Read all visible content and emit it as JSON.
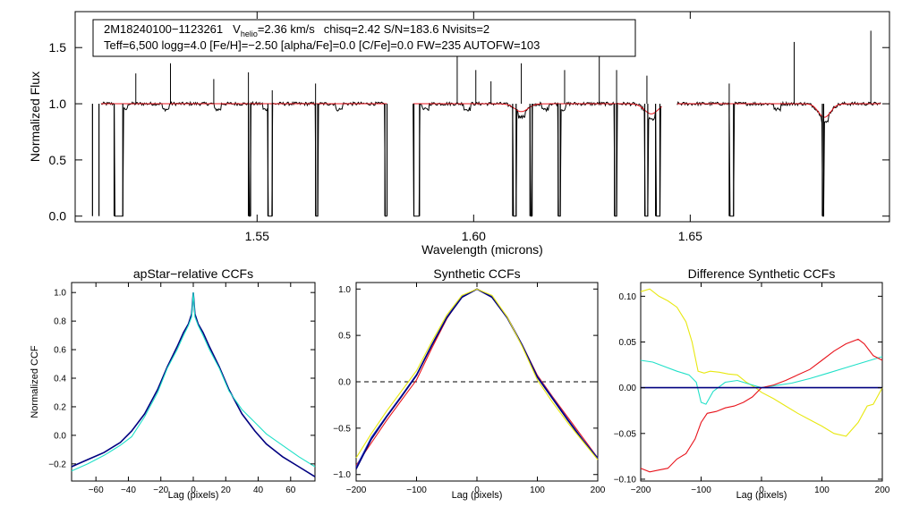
{
  "colors": {
    "observed": "#000000",
    "model": "#e8141c",
    "navy": "#000080",
    "cyan": "#20e0c8",
    "yellow": "#e8e810",
    "red": "#e8141c",
    "blue": "#2040d0",
    "zero_line": "#000000"
  },
  "chart_data": [
    {
      "type": "line",
      "id": "spectrum",
      "title": "",
      "info_line1": {
        "star": "2M18240100−1123261",
        "v_prefix": "V",
        "v_sub": "helio",
        "v_value": "=2.36 km/s",
        "rest": "chisq=2.42  S/N=183.6  Nvisits=2"
      },
      "info_line2": "Teff=6,500 logg=4.0 [Fe/H]=−2.50 [alpha/Fe]=0.0 [C/Fe]=0.0 FW=235 AUTOFW=103",
      "xlabel": "Wavelength (microns)",
      "ylabel": "Normalized Flux",
      "xlim": [
        1.508,
        1.696
      ],
      "ylim": [
        -0.05,
        1.82
      ],
      "xticks": [
        1.55,
        1.6,
        1.65
      ],
      "xtick_labels": [
        "1.55",
        "1.60",
        "1.65"
      ],
      "yticks": [
        0.0,
        0.5,
        1.0,
        1.5
      ],
      "ytick_labels": [
        "0.0",
        "0.5",
        "1.0",
        "1.5"
      ],
      "chips": [
        [
          1.514,
          1.58
        ],
        [
          1.586,
          1.6435
        ],
        [
          1.647,
          1.694
        ]
      ],
      "absorption_lines": [
        1.5192,
        1.5288,
        1.5408,
        1.552,
        1.5688,
        1.5888,
        1.5985,
        1.611,
        1.6165,
        1.6205,
        1.641,
        1.67,
        1.681
      ],
      "broad_features": [
        {
          "center": 1.611,
          "depth": 0.07,
          "width": 0.0022
        },
        {
          "center": 1.641,
          "depth": 0.09,
          "width": 0.0022
        },
        {
          "center": 1.681,
          "depth": 0.12,
          "width": 0.002
        }
      ],
      "emission_spikes": [
        [
          1.522,
          1.27
        ],
        [
          1.53,
          1.36
        ],
        [
          1.54,
          1.22
        ],
        [
          1.548,
          1.28
        ],
        [
          1.5535,
          1.12
        ],
        [
          1.5635,
          1.18
        ],
        [
          1.5962,
          1.45
        ],
        [
          1.6005,
          1.3
        ],
        [
          1.604,
          1.2
        ],
        [
          1.611,
          1.36
        ],
        [
          1.621,
          1.3
        ],
        [
          1.629,
          1.58
        ],
        [
          1.633,
          1.3
        ],
        [
          1.64,
          1.25
        ],
        [
          1.659,
          1.18
        ],
        [
          1.674,
          1.55
        ],
        [
          1.6917,
          1.65
        ]
      ],
      "gaps": [
        [
          1.512,
          1.5135
        ],
        [
          1.517,
          1.519
        ],
        [
          1.548,
          1.5485
        ],
        [
          1.5525,
          1.5535
        ],
        [
          1.5635,
          1.564
        ],
        [
          1.5795,
          1.58
        ],
        [
          1.5862,
          1.5875
        ],
        [
          1.609,
          1.6098
        ],
        [
          1.613,
          1.6135
        ],
        [
          1.6195,
          1.62
        ],
        [
          1.6325,
          1.633
        ],
        [
          1.6395,
          1.6402
        ],
        [
          1.642,
          1.643
        ],
        [
          1.659,
          1.66
        ],
        [
          1.6805,
          1.6808
        ]
      ]
    },
    {
      "type": "line",
      "id": "apstar_ccf",
      "title": "apStar−relative CCFs",
      "xlabel": "Lag (pixels)",
      "ylabel": "Normalized CCF",
      "xlim": [
        -75,
        75
      ],
      "ylim": [
        -0.32,
        1.07
      ],
      "xticks": [
        -60,
        -40,
        -20,
        0,
        20,
        40,
        60
      ],
      "xtick_labels": [
        "−60",
        "−40",
        "−20",
        "0",
        "20",
        "40",
        "60"
      ],
      "yticks": [
        -0.2,
        0.0,
        0.2,
        0.4,
        0.6,
        0.8,
        1.0
      ],
      "ytick_labels": [
        "−0.2",
        "0.0",
        "0.2",
        "0.4",
        "0.6",
        "0.8",
        "1.0"
      ],
      "series": [
        {
          "name": "navy",
          "color": "navy",
          "x": [
            -75,
            -65,
            -55,
            -45,
            -38,
            -30,
            -22,
            -16,
            -10,
            -6,
            -3,
            -1,
            0,
            1,
            3,
            6,
            10,
            16,
            22,
            30,
            38,
            45,
            55,
            65,
            75
          ],
          "y": [
            -0.22,
            -0.17,
            -0.12,
            -0.05,
            0.03,
            0.15,
            0.32,
            0.48,
            0.62,
            0.72,
            0.78,
            0.85,
            1.0,
            0.85,
            0.78,
            0.72,
            0.62,
            0.48,
            0.32,
            0.15,
            0.03,
            -0.06,
            -0.15,
            -0.22,
            -0.29
          ]
        },
        {
          "name": "cyan",
          "color": "cyan",
          "x": [
            -75,
            -65,
            -55,
            -45,
            -38,
            -30,
            -22,
            -16,
            -10,
            -6,
            -3,
            -1,
            0,
            1,
            3,
            6,
            10,
            16,
            22,
            30,
            38,
            45,
            55,
            65,
            75
          ],
          "y": [
            -0.25,
            -0.2,
            -0.14,
            -0.07,
            -0.01,
            0.13,
            0.3,
            0.47,
            0.6,
            0.7,
            0.77,
            0.83,
            1.0,
            0.83,
            0.77,
            0.7,
            0.6,
            0.47,
            0.31,
            0.18,
            0.09,
            0.01,
            -0.07,
            -0.15,
            -0.22
          ]
        }
      ]
    },
    {
      "type": "line",
      "id": "synthetic_ccf",
      "title": "Synthetic CCFs",
      "xlabel": "Lag (pixels)",
      "ylabel": "",
      "xlim": [
        -200,
        200
      ],
      "ylim": [
        -1.07,
        1.07
      ],
      "xticks": [
        -200,
        -100,
        0,
        100,
        200
      ],
      "xtick_labels": [
        "−200",
        "−100",
        "0",
        "100",
        "200"
      ],
      "yticks": [
        -1.0,
        -0.5,
        0.0,
        0.5,
        1.0
      ],
      "ytick_labels": [
        "−1.0",
        "−0.5",
        "0.0",
        "0.5",
        "1.0"
      ],
      "zero_line": 0,
      "series": [
        {
          "name": "red",
          "color": "red",
          "x": [
            -200,
            -175,
            -150,
            -125,
            -100,
            -75,
            -50,
            -25,
            0,
            25,
            50,
            75,
            100,
            125,
            150,
            175,
            200
          ],
          "y": [
            -0.9,
            -0.66,
            -0.42,
            -0.2,
            0.02,
            0.36,
            0.68,
            0.92,
            1.0,
            0.92,
            0.7,
            0.4,
            0.07,
            -0.16,
            -0.38,
            -0.6,
            -0.82
          ]
        },
        {
          "name": "blue",
          "color": "blue",
          "x": [
            -200,
            -175,
            -150,
            -125,
            -100,
            -75,
            -50,
            -25,
            0,
            25,
            50,
            75,
            100,
            125,
            150,
            175,
            200
          ],
          "y": [
            -0.92,
            -0.6,
            -0.37,
            -0.15,
            0.08,
            0.4,
            0.7,
            0.92,
            1.0,
            0.92,
            0.7,
            0.4,
            0.06,
            -0.17,
            -0.4,
            -0.62,
            -0.82
          ]
        },
        {
          "name": "navy",
          "color": "navy",
          "x": [
            -200,
            -175,
            -150,
            -125,
            -100,
            -75,
            -50,
            -25,
            0,
            25,
            50,
            75,
            100,
            125,
            150,
            175,
            200
          ],
          "y": [
            -0.94,
            -0.62,
            -0.38,
            -0.16,
            0.07,
            0.39,
            0.69,
            0.91,
            1.0,
            0.91,
            0.69,
            0.39,
            0.05,
            -0.18,
            -0.41,
            -0.63,
            -0.83
          ]
        },
        {
          "name": "yellow",
          "color": "yellow",
          "x": [
            -200,
            -175,
            -150,
            -125,
            -100,
            -75,
            -50,
            -25,
            0,
            25,
            50,
            75,
            100,
            125,
            150,
            175,
            200
          ],
          "y": [
            -0.82,
            -0.56,
            -0.32,
            -0.1,
            0.12,
            0.43,
            0.72,
            0.93,
            1.0,
            0.93,
            0.7,
            0.38,
            0.02,
            -0.22,
            -0.44,
            -0.64,
            -0.84
          ]
        }
      ]
    },
    {
      "type": "line",
      "id": "diff_ccf",
      "title": "Difference Synthetic CCFs",
      "xlabel": "Lag (pixels)",
      "ylabel": "",
      "xlim": [
        -200,
        200
      ],
      "ylim": [
        -0.102,
        0.115
      ],
      "xticks": [
        -200,
        -100,
        0,
        100,
        200
      ],
      "xtick_labels": [
        "−200",
        "−100",
        "0",
        "100",
        "200"
      ],
      "yticks": [
        -0.1,
        -0.05,
        0.0,
        0.05,
        0.1
      ],
      "ytick_labels": [
        "−0.10",
        "−0.05",
        "0.00",
        "0.05",
        "0.10"
      ],
      "series": [
        {
          "name": "yellow",
          "color": "yellow",
          "x": [
            -200,
            -185,
            -170,
            -155,
            -140,
            -125,
            -115,
            -105,
            -95,
            -85,
            -70,
            -55,
            -40,
            -25,
            -10,
            0,
            20,
            40,
            60,
            80,
            100,
            120,
            140,
            160,
            175,
            185,
            200
          ],
          "y": [
            0.105,
            0.108,
            0.1,
            0.095,
            0.088,
            0.072,
            0.05,
            0.018,
            0.016,
            0.018,
            0.017,
            0.015,
            0.014,
            0.006,
            0.0,
            -0.005,
            -0.012,
            -0.02,
            -0.028,
            -0.035,
            -0.042,
            -0.05,
            -0.053,
            -0.038,
            -0.02,
            -0.018,
            0.0
          ]
        },
        {
          "name": "cyan",
          "color": "cyan",
          "x": [
            -200,
            -180,
            -160,
            -140,
            -120,
            -108,
            -100,
            -92,
            -80,
            -60,
            -40,
            -20,
            0,
            20,
            50,
            80,
            110,
            140,
            170,
            200
          ],
          "y": [
            0.03,
            0.028,
            0.023,
            0.018,
            0.014,
            0.006,
            -0.016,
            -0.018,
            -0.004,
            0.006,
            0.008,
            0.004,
            0.0,
            0.002,
            0.005,
            0.01,
            0.016,
            0.022,
            0.028,
            0.034
          ]
        },
        {
          "name": "red",
          "color": "red",
          "x": [
            -200,
            -185,
            -170,
            -155,
            -140,
            -125,
            -110,
            -100,
            -90,
            -75,
            -60,
            -45,
            -30,
            -15,
            0,
            20,
            40,
            60,
            80,
            100,
            120,
            140,
            160,
            170,
            185,
            200
          ],
          "y": [
            -0.088,
            -0.092,
            -0.09,
            -0.088,
            -0.078,
            -0.072,
            -0.056,
            -0.038,
            -0.028,
            -0.026,
            -0.022,
            -0.02,
            -0.016,
            -0.01,
            0.0,
            0.003,
            0.008,
            0.014,
            0.02,
            0.03,
            0.04,
            0.048,
            0.053,
            0.048,
            0.035,
            0.03
          ]
        },
        {
          "name": "navy",
          "color": "navy",
          "x": [
            -200,
            200
          ],
          "y": [
            0.0,
            0.0
          ]
        }
      ]
    }
  ]
}
